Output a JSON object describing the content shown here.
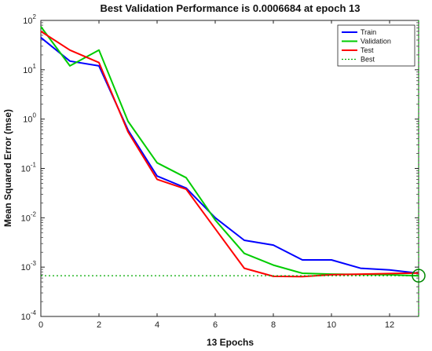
{
  "chart_data": {
    "type": "line",
    "title": "Best Validation Performance is 0.0006684 at epoch 13",
    "xlabel": "13 Epochs",
    "ylabel": "Mean Squared Error  (mse)",
    "xlim": [
      0,
      13
    ],
    "ylim": [
      0.0001,
      100
    ],
    "yscale": "log",
    "xticks": [
      0,
      2,
      4,
      6,
      8,
      10,
      12
    ],
    "yticks": [
      {
        "value": 0.0001,
        "base": "10",
        "exp": "-4"
      },
      {
        "value": 0.001,
        "base": "10",
        "exp": "-3"
      },
      {
        "value": 0.01,
        "base": "10",
        "exp": "-2"
      },
      {
        "value": 0.1,
        "base": "10",
        "exp": "-1"
      },
      {
        "value": 1,
        "base": "10",
        "exp": "0"
      },
      {
        "value": 10,
        "base": "10",
        "exp": "1"
      },
      {
        "value": 100,
        "base": "10",
        "exp": "2"
      }
    ],
    "grid": false,
    "legend_position": "top-right",
    "series": [
      {
        "name": "Train",
        "color": "#0000ff",
        "style": "solid",
        "x": [
          0,
          1,
          2,
          3,
          4,
          5,
          6,
          7,
          8,
          9,
          10,
          11,
          12,
          13
        ],
        "y": [
          45,
          15,
          12,
          0.6,
          0.07,
          0.04,
          0.01,
          0.0035,
          0.0028,
          0.0014,
          0.0014,
          0.00095,
          0.00088,
          0.00075
        ]
      },
      {
        "name": "Validation",
        "color": "#00cc00",
        "style": "solid",
        "x": [
          0,
          1,
          2,
          3,
          4,
          5,
          6,
          7,
          8,
          9,
          10,
          11,
          12,
          13
        ],
        "y": [
          75,
          12,
          25,
          0.9,
          0.13,
          0.065,
          0.009,
          0.0019,
          0.0011,
          0.00075,
          0.00072,
          0.00071,
          0.0007,
          0.0006684
        ]
      },
      {
        "name": "Test",
        "color": "#ff0000",
        "style": "solid",
        "x": [
          0,
          1,
          2,
          3,
          4,
          5,
          6,
          7,
          8,
          9,
          10,
          11,
          12,
          13
        ],
        "y": [
          60,
          25,
          14,
          0.55,
          0.06,
          0.038,
          0.006,
          0.00095,
          0.00065,
          0.00064,
          0.0007,
          0.00072,
          0.00074,
          0.00076
        ]
      }
    ],
    "best": {
      "name": "Best",
      "color": "#00aa00",
      "style": "dotted",
      "epoch": 13,
      "value": 0.0006684
    }
  }
}
